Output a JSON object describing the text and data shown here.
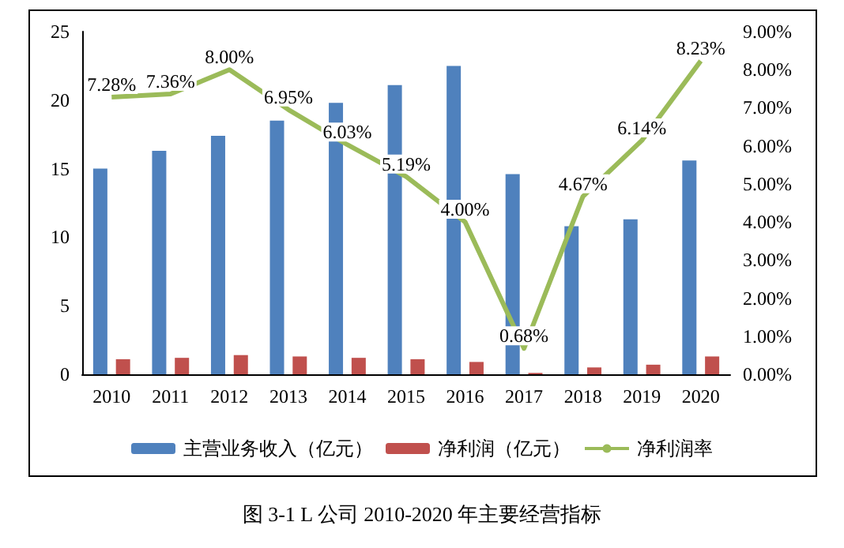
{
  "chart_data": {
    "type": "bar",
    "title": "图 3-1 L 公司 2010-2020 年主要经营指标",
    "categories": [
      "2010",
      "2011",
      "2012",
      "2013",
      "2014",
      "2015",
      "2016",
      "2017",
      "2018",
      "2019",
      "2020"
    ],
    "series": [
      {
        "name": "主营业务收入（亿元）",
        "color": "#4f81bd",
        "values": [
          15.0,
          16.3,
          17.4,
          18.5,
          19.8,
          21.1,
          22.5,
          14.6,
          10.8,
          11.3,
          15.6
        ]
      },
      {
        "name": "净利润（亿元）",
        "color": "#c0504d",
        "values": [
          1.1,
          1.2,
          1.4,
          1.3,
          1.2,
          1.1,
          0.9,
          0.1,
          0.5,
          0.7,
          1.3
        ]
      },
      {
        "name": "净利润率",
        "type": "line",
        "axis": "y2",
        "color": "#9bbb59",
        "values": [
          7.28,
          7.36,
          8.0,
          6.95,
          6.03,
          5.19,
          4.0,
          0.68,
          4.67,
          6.14,
          8.23
        ],
        "value_labels": [
          "7.28%",
          "7.36%",
          "8.00%",
          "6.95%",
          "6.03%",
          "5.19%",
          "4.00%",
          "0.68%",
          "4.67%",
          "6.14%",
          "8.23%"
        ]
      }
    ],
    "ylim": [
      0,
      25
    ],
    "yticks": [
      0,
      5,
      10,
      15,
      20,
      25
    ],
    "y2lim": [
      0,
      9
    ],
    "y2ticks": [
      {
        "value": 0,
        "label": "0.00%"
      },
      {
        "value": 1,
        "label": "1.00%"
      },
      {
        "value": 2,
        "label": "2.00%"
      },
      {
        "value": 3,
        "label": "3.00%"
      },
      {
        "value": 4,
        "label": "4.00%"
      },
      {
        "value": 5,
        "label": "5.00%"
      },
      {
        "value": 6,
        "label": "6.00%"
      },
      {
        "value": 7,
        "label": "7.00%"
      },
      {
        "value": 8,
        "label": "8.00%"
      },
      {
        "value": 9,
        "label": "9.00%"
      }
    ],
    "grid": false,
    "legend": "bottom",
    "marker": "none",
    "line_style": "solid"
  }
}
